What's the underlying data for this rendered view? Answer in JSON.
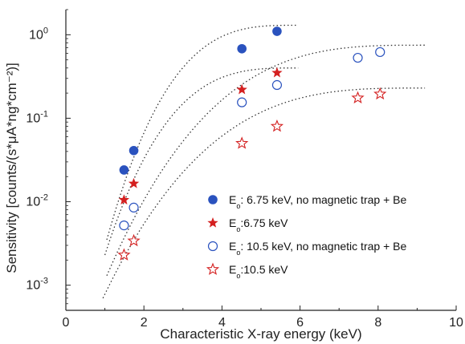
{
  "chart_data": {
    "type": "scatter",
    "xlabel": "Characteristic X-ray energy (keV)",
    "ylabel": "Sensitivity [counts/(s*μA*ng*cm⁻²)]",
    "xlim": [
      0,
      10
    ],
    "ylim": [
      0.0005,
      2
    ],
    "yscale": "log",
    "x_ticks": [
      "0",
      "2",
      "4",
      "6",
      "8",
      "10"
    ],
    "y_ticks": [
      {
        "value": 0.001,
        "label": "10",
        "exp": "-3"
      },
      {
        "value": 0.01,
        "label": "10",
        "exp": "-2"
      },
      {
        "value": 0.1,
        "label": "10",
        "exp": "-1"
      },
      {
        "value": 1,
        "label": "10",
        "exp": "0"
      }
    ],
    "grid": false,
    "legend_position": "bottom-right",
    "series": [
      {
        "name": "E₀: 6.75 keV, no magnetic trap + Be",
        "legend_prefix": "E",
        "legend_sub": "o",
        "legend_rest": ": 6.75 keV, no magnetic trap + Be",
        "marker": "circle-filled",
        "color": "#2a52be",
        "x": [
          1.49,
          1.74,
          4.51,
          5.41
        ],
        "y": [
          0.024,
          0.041,
          0.68,
          1.1
        ],
        "fit_x_range": [
          1.05,
          5.95
        ],
        "fit_y_range": [
          0.0035,
          1.3
        ]
      },
      {
        "name": "E₀:6.75 keV",
        "legend_prefix": "E",
        "legend_sub": "o",
        "legend_rest": ":6.75 keV",
        "marker": "star-filled",
        "color": "#d42020",
        "x": [
          1.49,
          1.74,
          4.51,
          5.41
        ],
        "y": [
          0.0105,
          0.0165,
          0.22,
          0.35
        ],
        "fit_x_range": [
          1.0,
          5.95
        ],
        "fit_y_range": [
          0.0023,
          0.4
        ]
      },
      {
        "name": "E₀: 10.5 keV, no magnetic trap + Be",
        "legend_prefix": "E",
        "legend_sub": "o",
        "legend_rest": ": 10.5 keV, no magnetic trap + Be",
        "marker": "circle-open",
        "color": "#2a52be",
        "x": [
          1.49,
          1.74,
          4.51,
          5.41,
          7.48,
          8.05
        ],
        "y": [
          0.0052,
          0.0085,
          0.155,
          0.25,
          0.53,
          0.62
        ],
        "fit_x_range": [
          1.05,
          9.2
        ],
        "fit_y_range": [
          0.0013,
          0.75
        ]
      },
      {
        "name": "E₀:10.5 keV",
        "legend_prefix": "E",
        "legend_sub": "o",
        "legend_rest": ":10.5 keV",
        "marker": "star-open",
        "color": "#d42020",
        "x": [
          1.49,
          1.74,
          4.51,
          5.41,
          7.48,
          8.05
        ],
        "y": [
          0.0023,
          0.0034,
          0.05,
          0.08,
          0.175,
          0.195
        ],
        "fit_x_range": [
          0.95,
          9.2
        ],
        "fit_y_range": [
          0.0007,
          0.23
        ]
      }
    ]
  }
}
